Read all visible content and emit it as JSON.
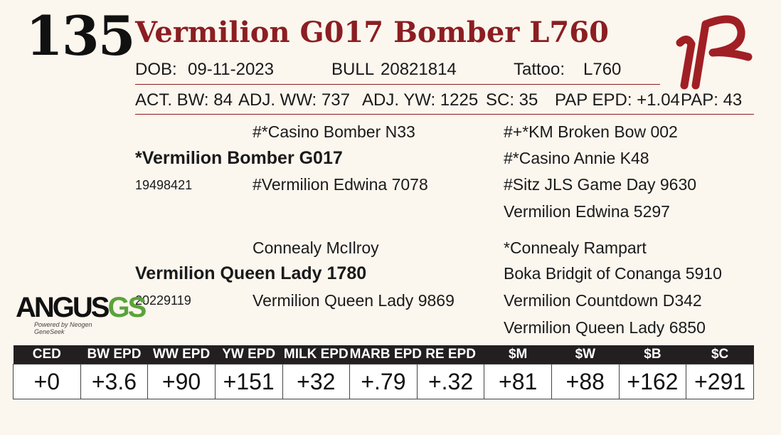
{
  "lot_number": "135",
  "animal_name": "Vermilion G017 Bomber L760",
  "info_row": {
    "dob_label": "DOB:",
    "dob_value": "09-11-2023",
    "sex_label": "BULL",
    "registration": "20821814",
    "tattoo_label": "Tattoo:",
    "tattoo_value": "L760"
  },
  "perf_row": {
    "act_bw": "ACT. BW: 84",
    "adj_ww": "ADJ. WW: 737",
    "adj_yw": "ADJ. YW: 1225",
    "sc": "SC: 35",
    "pap_epd": "PAP EPD: +1.04",
    "pap": "PAP: 43"
  },
  "pedigree": {
    "sire": "*Vermilion Bomber G017",
    "sire_reg": "19498421",
    "sire_sire": "#*Casino Bomber N33",
    "sire_dam": "#Vermilion Edwina 7078",
    "sss": "#+*KM Broken Bow 002",
    "ssd": "#*Casino Annie K48",
    "sds": "#Sitz JLS Game Day 9630",
    "sdd": "Vermilion Edwina 5297",
    "dam": "Vermilion Queen Lady 1780",
    "dam_reg": "20229119",
    "dam_sire": "Connealy McIlroy",
    "dam_dam": "Vermilion Queen Lady 9869",
    "dss": "*Connealy Rampart",
    "dsd": "Boka Bridgit of Conanga 5910",
    "dds": "Vermilion Countdown D342",
    "ddd": "Vermilion Queen Lady 6850"
  },
  "logo": {
    "brand_main": "ANGUS",
    "brand_suffix": "GS",
    "brand_tagline": "Powered by Neogen GeneSeek"
  },
  "epd_table": {
    "headers": [
      "CED",
      "BW EPD",
      "WW EPD",
      "YW EPD",
      "MILK EPD",
      "MARB EPD",
      "RE EPD",
      "$M",
      "$W",
      "$B",
      "$C"
    ],
    "values": [
      "+0",
      "+3.6",
      "+90",
      "+151",
      "+32",
      "+.79",
      "+.32",
      "+81",
      "+88",
      "+162",
      "+291"
    ]
  },
  "colors": {
    "accent": "#8b1e22",
    "background": "#fbf6ee",
    "header_bg": "#231f20",
    "logo_green": "#5aa33a"
  }
}
